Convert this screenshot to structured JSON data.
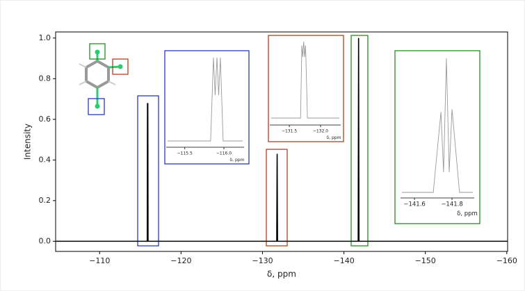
{
  "chart_data": {
    "type": "line",
    "x_label": "δ, ppm",
    "y_label": "Intensity",
    "xlim": [
      -104.6,
      -160.1
    ],
    "ylim": [
      -0.05,
      1.03
    ],
    "xticks": [
      {
        "value": -110,
        "label": "−110"
      },
      {
        "value": -120,
        "label": "−120"
      },
      {
        "value": -130,
        "label": "−130"
      },
      {
        "value": -140,
        "label": "−140"
      },
      {
        "value": -150,
        "label": "−150"
      },
      {
        "value": -160,
        "label": "−160"
      }
    ],
    "yticks": [
      {
        "value": 0,
        "label": "0.0"
      },
      0.2,
      0.4,
      0.6,
      0.8,
      {
        "value": 1,
        "label": "1.0"
      }
    ],
    "series": [
      {
        "color": "#000000",
        "x": [
          -104.6,
          -115.85,
          -115.88,
          -115.9,
          -115.92,
          -115.95,
          -131.75,
          -131.8,
          -131.85,
          -141.75,
          -141.8,
          -141.85,
          -160.1
        ],
        "values": [
          0,
          0,
          0.68,
          0.3,
          0.68,
          0,
          0,
          0.43,
          0,
          0,
          1.0,
          0,
          0
        ]
      }
    ],
    "insets": [
      {
        "type": "line",
        "x_label": "δ, ppm",
        "xlim": [
          -115.28,
          -116.24
        ],
        "ylim": [
          0,
          1
        ],
        "xticks": [
          {
            "value": -115.5,
            "label": "−115.5"
          },
          {
            "value": -116.0,
            "label": "−116.0"
          }
        ],
        "series": [
          {
            "color": "#999999",
            "x": [
              -115.28,
              -115.83,
              -115.866,
              -115.888,
              -115.911,
              -115.933,
              -115.955,
              -115.99,
              -116.24
            ],
            "values": [
              0,
              0,
              1,
              0.55,
              1,
              0.55,
              1,
              0,
              0
            ]
          }
        ]
      },
      {
        "type": "line",
        "x_label": "δ, ppm",
        "xlim": [
          -131.21,
          -132.3
        ],
        "ylim": [
          0,
          1
        ],
        "xticks": [
          {
            "value": -131.5,
            "label": "−131.5"
          },
          {
            "value": -132.0,
            "label": "−132.0"
          }
        ],
        "series": [
          {
            "color": "#999999",
            "x": [
              -131.21,
              -131.68,
              -131.7,
              -131.715,
              -131.73,
              -131.745,
              -131.76,
              -131.79,
              -132.3
            ],
            "values": [
              0,
              0,
              0.95,
              0.8,
              1,
              0.8,
              0.95,
              0,
              0
            ]
          }
        ]
      },
      {
        "type": "line",
        "x_label": "δ, ppm",
        "xlim": [
          -141.533,
          -141.911
        ],
        "ylim": [
          0,
          1
        ],
        "xticks": [
          {
            "value": -141.6,
            "label": "−141.6"
          },
          {
            "value": -141.8,
            "label": "−141.8"
          }
        ],
        "series": [
          {
            "color": "#999999",
            "x": [
              -141.533,
              -141.7,
              -141.741,
              -141.755,
              -141.77,
              -141.785,
              -141.8,
              -141.84,
              -141.911
            ],
            "values": [
              0,
              0,
              0.6,
              0.15,
              1,
              0.15,
              0.62,
              0,
              0
            ]
          }
        ]
      }
    ]
  }
}
